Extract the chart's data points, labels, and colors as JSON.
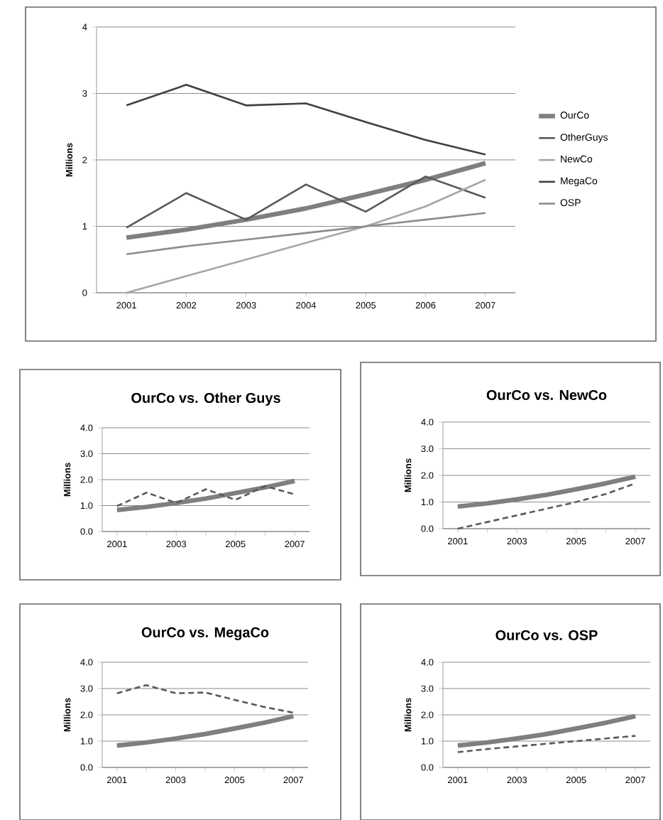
{
  "chart_data": [
    {
      "type": "line",
      "categories": [
        "2001",
        "2002",
        "2003",
        "2004",
        "2005",
        "2006",
        "2007"
      ],
      "ylabel": "Millions",
      "ylim": [
        0,
        4
      ],
      "yticks": [
        0,
        1,
        2,
        3,
        4
      ],
      "grid": "y",
      "legend": "right",
      "series": [
        {
          "name": "OurCo",
          "color": "#7f7f7f",
          "line_style": "solid",
          "values": [
            0.83,
            0.95,
            1.1,
            1.27,
            1.48,
            1.7,
            1.95
          ]
        },
        {
          "name": "OtherGuys",
          "color": "#595959",
          "line_style": "solid",
          "values": [
            0.98,
            1.5,
            1.1,
            1.63,
            1.22,
            1.75,
            1.43
          ]
        },
        {
          "name": "NewCo",
          "color": "#a6a6a6",
          "line_style": "solid",
          "values": [
            0,
            0.25,
            0.5,
            0.75,
            1.0,
            1.3,
            1.7
          ]
        },
        {
          "name": "MegaCo",
          "color": "#404040",
          "line_style": "solid",
          "values": [
            2.82,
            3.13,
            2.82,
            2.85,
            2.57,
            2.3,
            2.08
          ]
        },
        {
          "name": "OSP",
          "color": "#8c8c8c",
          "line_style": "solid",
          "values": [
            0.58,
            0.7,
            0.8,
            0.9,
            1.0,
            1.1,
            1.2
          ]
        }
      ]
    },
    {
      "type": "line",
      "title": "OurCo vs. Other Guys",
      "categories": [
        "2001",
        null,
        "2003",
        null,
        "2005",
        null,
        "2007"
      ],
      "ylabel": "Millions",
      "ylim": [
        0,
        4
      ],
      "yticks": [
        {
          "value": 0,
          "label": "0.0"
        },
        {
          "value": 1,
          "label": "1.0"
        },
        {
          "value": 2,
          "label": "2.0"
        },
        {
          "value": 3,
          "label": "3.0"
        },
        {
          "value": 4,
          "label": "4.0"
        }
      ],
      "grid": "y",
      "series": [
        {
          "color": "#7f7f7f",
          "line_style": "solid",
          "values": [
            0.83,
            0.95,
            1.1,
            1.27,
            1.48,
            1.7,
            1.95
          ]
        },
        {
          "color": "#595959",
          "line_style": "dashed",
          "values": [
            0.98,
            1.5,
            1.1,
            1.63,
            1.22,
            1.75,
            1.43
          ]
        }
      ]
    },
    {
      "type": "line",
      "title": "OurCo vs. NewCo",
      "categories": [
        "2001",
        null,
        "2003",
        null,
        "2005",
        null,
        "2007"
      ],
      "ylabel": "Millions",
      "ylim": [
        0,
        4
      ],
      "yticks": [
        {
          "value": 0,
          "label": "0.0"
        },
        {
          "value": 1,
          "label": "1.0"
        },
        {
          "value": 2,
          "label": "2.0"
        },
        {
          "value": 3,
          "label": "3.0"
        },
        {
          "value": 4,
          "label": "4.0"
        }
      ],
      "grid": "y",
      "series": [
        {
          "color": "#7f7f7f",
          "line_style": "solid",
          "values": [
            0.83,
            0.95,
            1.1,
            1.27,
            1.48,
            1.7,
            1.95
          ]
        },
        {
          "color": "#595959",
          "line_style": "dashed",
          "values": [
            0,
            0.25,
            0.5,
            0.75,
            1.0,
            1.3,
            1.7
          ]
        }
      ]
    },
    {
      "type": "line",
      "title": "OurCo vs. MegaCo",
      "categories": [
        "2001",
        null,
        "2003",
        null,
        "2005",
        null,
        "2007"
      ],
      "ylabel": "Millions",
      "ylim": [
        0,
        4
      ],
      "yticks": [
        {
          "value": 0,
          "label": "0.0"
        },
        {
          "value": 1,
          "label": "1.0"
        },
        {
          "value": 2,
          "label": "2.0"
        },
        {
          "value": 3,
          "label": "3.0"
        },
        {
          "value": 4,
          "label": "4.0"
        }
      ],
      "grid": "y",
      "series": [
        {
          "color": "#7f7f7f",
          "line_style": "solid",
          "values": [
            0.83,
            0.95,
            1.1,
            1.27,
            1.48,
            1.7,
            1.95
          ]
        },
        {
          "color": "#595959",
          "line_style": "dashed",
          "values": [
            2.82,
            3.13,
            2.82,
            2.85,
            2.57,
            2.3,
            2.08
          ]
        }
      ]
    },
    {
      "type": "line",
      "title": "OurCo vs. OSP",
      "categories": [
        "2001",
        null,
        "2003",
        null,
        "2005",
        null,
        "2007"
      ],
      "ylabel": "Millions",
      "ylim": [
        0,
        4
      ],
      "yticks": [
        {
          "value": 0,
          "label": "0.0"
        },
        {
          "value": 1,
          "label": "1.0"
        },
        {
          "value": 2,
          "label": "2.0"
        },
        {
          "value": 3,
          "label": "3.0"
        },
        {
          "value": 4,
          "label": "4.0"
        }
      ],
      "grid": "y",
      "series": [
        {
          "color": "#7f7f7f",
          "line_style": "solid",
          "values": [
            0.83,
            0.95,
            1.1,
            1.27,
            1.48,
            1.7,
            1.95
          ]
        },
        {
          "color": "#595959",
          "line_style": "dashed",
          "values": [
            0.58,
            0.7,
            0.8,
            0.9,
            1.0,
            1.1,
            1.2
          ]
        }
      ]
    }
  ]
}
